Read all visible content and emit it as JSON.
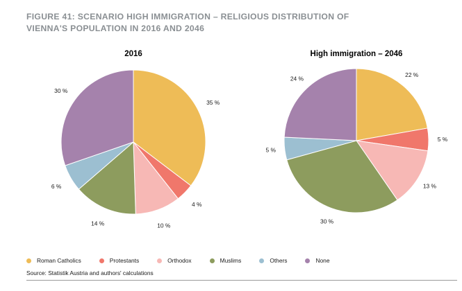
{
  "figure": {
    "title_line1": "FIGURE 41: SCENARIO HIGH IMMIGRATION – RELIGIOUS DISTRIBUTION OF",
    "title_line2": "VIENNA'S POPULATION IN 2016 AND 2046",
    "title_color": "#8a8f93",
    "source": "Source: Statistik Austria and authors' calculations"
  },
  "colors": {
    "Roman Catholics": "#eebc57",
    "Protestants": "#f0776b",
    "Orthodox": "#f7b8b5",
    "Muslims": "#8d9c5e",
    "Others": "#9cbfd1",
    "None": "#a582ac"
  },
  "legend": [
    "Roman Catholics",
    "Protestants",
    "Orthodox",
    "Muslims",
    "Others",
    "None"
  ],
  "chart_data": [
    {
      "type": "pie",
      "title": "2016",
      "slices": [
        {
          "label": "Roman Catholics",
          "value": 35,
          "text": "35 %"
        },
        {
          "label": "Protestants",
          "value": 4,
          "text": "4 %"
        },
        {
          "label": "Orthodox",
          "value": 10,
          "text": "10 %"
        },
        {
          "label": "Muslims",
          "value": 14,
          "text": "14 %"
        },
        {
          "label": "Others",
          "value": 6,
          "text": "6 %"
        },
        {
          "label": "None",
          "value": 30,
          "text": "30 %"
        }
      ]
    },
    {
      "type": "pie",
      "title": "High immigration – 2046",
      "slices": [
        {
          "label": "Roman Catholics",
          "value": 22,
          "text": "22 %"
        },
        {
          "label": "Protestants",
          "value": 5,
          "text": "5 %"
        },
        {
          "label": "Orthodox",
          "value": 13,
          "text": "13 %"
        },
        {
          "label": "Muslims",
          "value": 30,
          "text": "30 %"
        },
        {
          "label": "Others",
          "value": 5,
          "text": "5 %"
        },
        {
          "label": "None",
          "value": 24,
          "text": "24 %"
        }
      ]
    }
  ]
}
